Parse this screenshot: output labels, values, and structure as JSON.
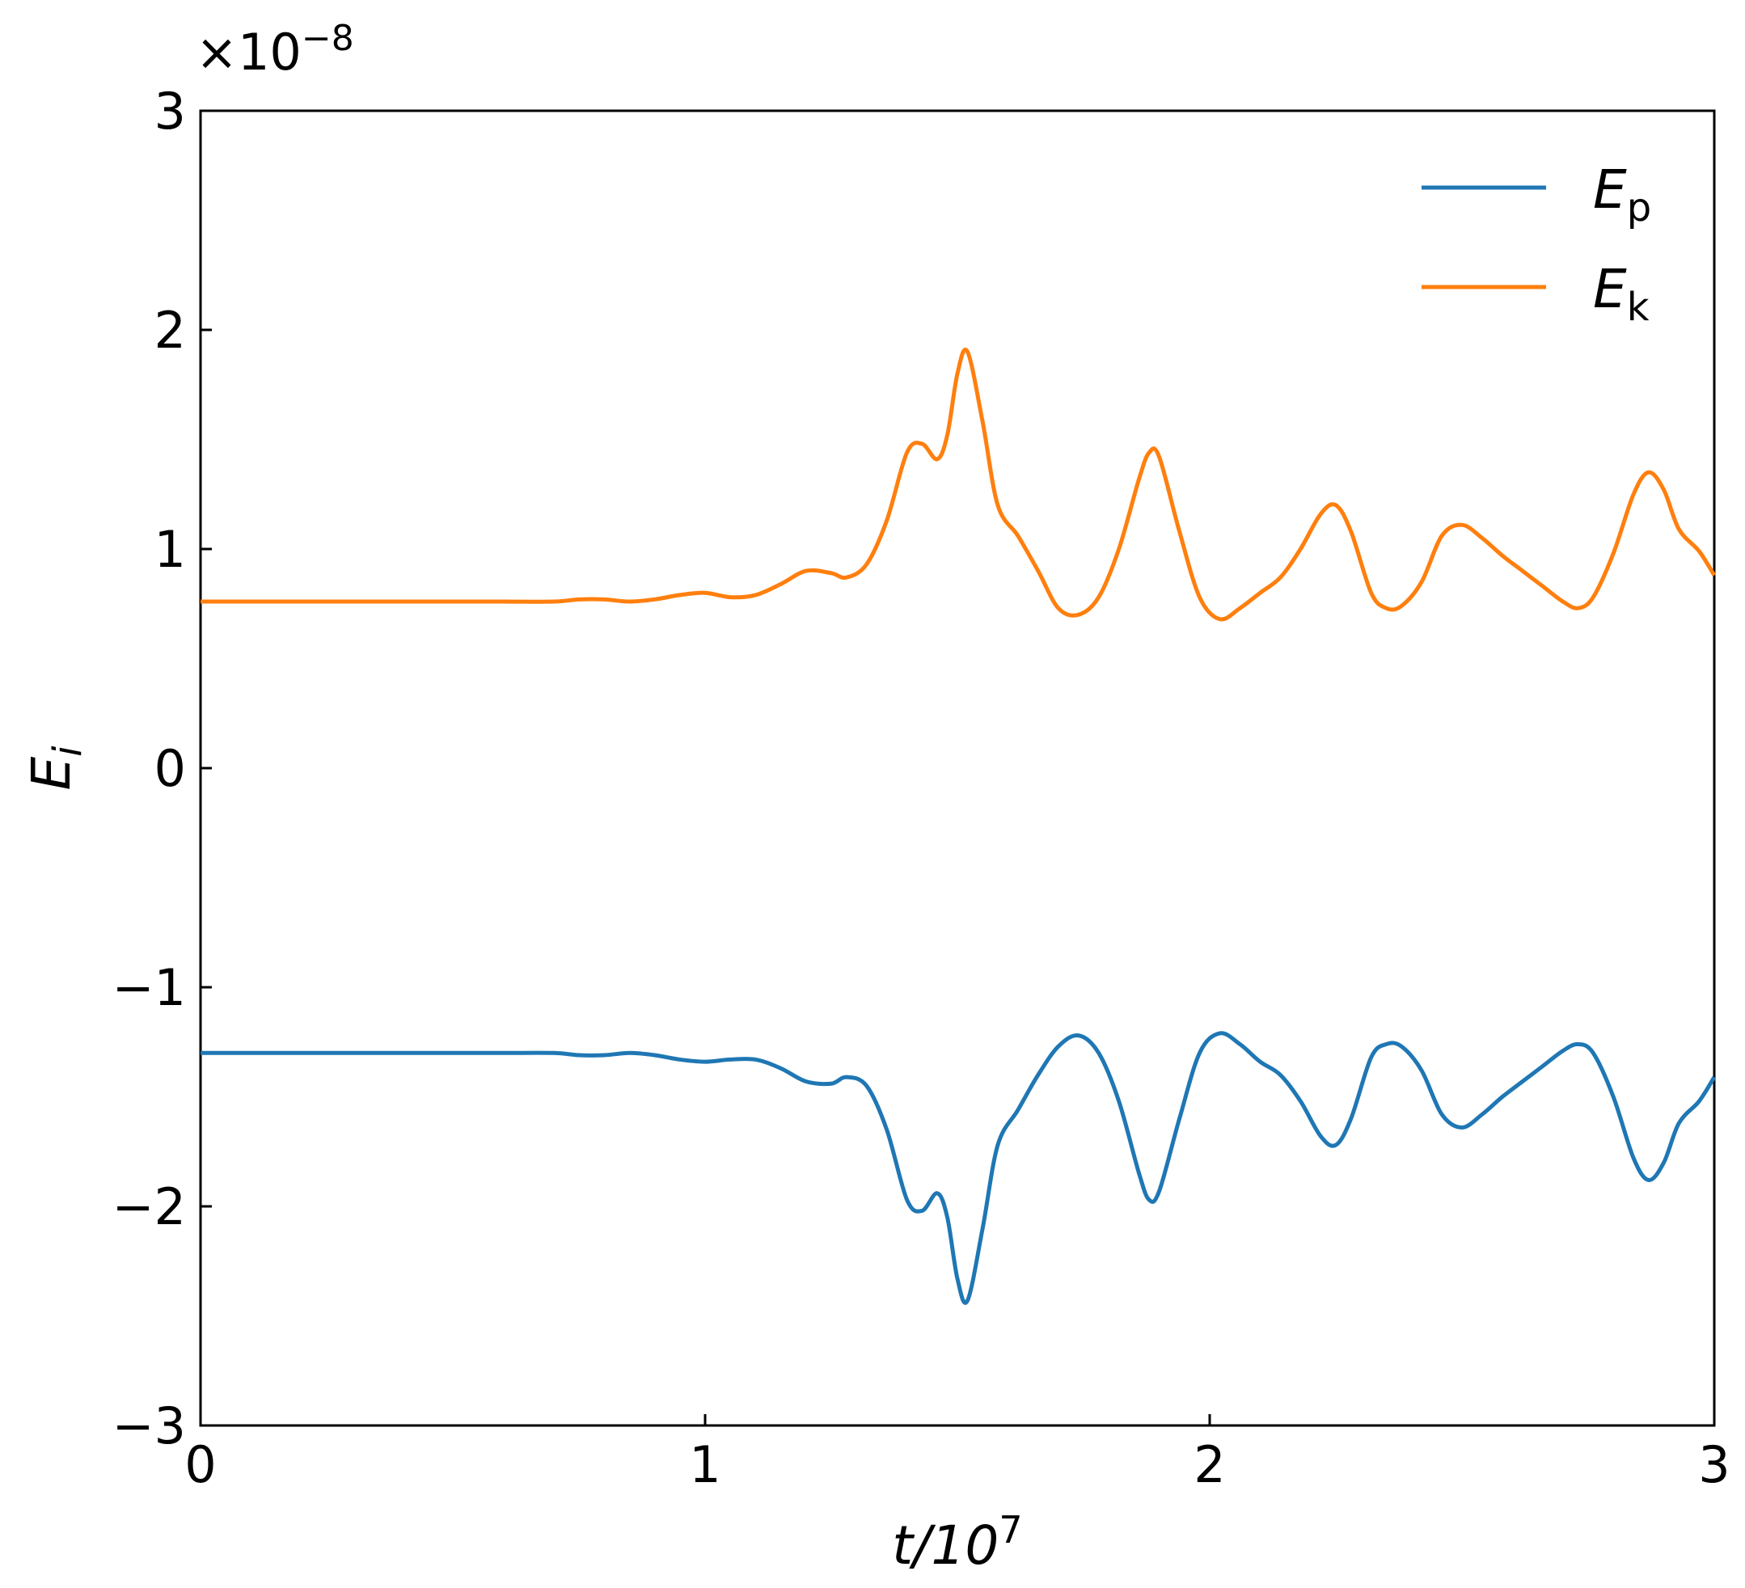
{
  "chart_data": {
    "type": "line",
    "xlabel": {
      "main": "t/10",
      "sup": "7"
    },
    "ylabel": {
      "main": "E",
      "sub": "i"
    },
    "offset_text": {
      "prefix": "×10",
      "sup": "−8"
    },
    "xlim": [
      0,
      3
    ],
    "ylim": [
      -3,
      3
    ],
    "xticks": [
      0,
      1,
      2,
      3
    ],
    "xtick_labels": [
      "0",
      "1",
      "2",
      "3"
    ],
    "yticks": [
      -3,
      -2,
      -1,
      0,
      1,
      2,
      3
    ],
    "ytick_labels": [
      "−3",
      "−2",
      "−1",
      "0",
      "1",
      "2",
      "3"
    ],
    "grid": false,
    "legend_position": "top-right",
    "series": [
      {
        "name": {
          "main": "E",
          "sub": "p"
        },
        "color": "#1f77b4",
        "points": [
          [
            0.0,
            -1.3
          ],
          [
            0.1,
            -1.3
          ],
          [
            0.2,
            -1.3
          ],
          [
            0.3,
            -1.3
          ],
          [
            0.4,
            -1.3
          ],
          [
            0.5,
            -1.3
          ],
          [
            0.6,
            -1.3
          ],
          [
            0.7,
            -1.3
          ],
          [
            0.75,
            -1.31
          ],
          [
            0.8,
            -1.31
          ],
          [
            0.85,
            -1.3
          ],
          [
            0.9,
            -1.31
          ],
          [
            0.95,
            -1.33
          ],
          [
            1.0,
            -1.34
          ],
          [
            1.05,
            -1.33
          ],
          [
            1.1,
            -1.33
          ],
          [
            1.15,
            -1.37
          ],
          [
            1.2,
            -1.43
          ],
          [
            1.25,
            -1.44
          ],
          [
            1.28,
            -1.41
          ],
          [
            1.32,
            -1.45
          ],
          [
            1.36,
            -1.65
          ],
          [
            1.4,
            -1.97
          ],
          [
            1.43,
            -2.02
          ],
          [
            1.46,
            -1.94
          ],
          [
            1.48,
            -2.05
          ],
          [
            1.5,
            -2.33
          ],
          [
            1.52,
            -2.43
          ],
          [
            1.55,
            -2.1
          ],
          [
            1.58,
            -1.72
          ],
          [
            1.62,
            -1.56
          ],
          [
            1.66,
            -1.4
          ],
          [
            1.7,
            -1.27
          ],
          [
            1.74,
            -1.22
          ],
          [
            1.78,
            -1.3
          ],
          [
            1.82,
            -1.52
          ],
          [
            1.86,
            -1.85
          ],
          [
            1.88,
            -1.97
          ],
          [
            1.9,
            -1.93
          ],
          [
            1.94,
            -1.6
          ],
          [
            1.98,
            -1.3
          ],
          [
            2.02,
            -1.21
          ],
          [
            2.06,
            -1.26
          ],
          [
            2.1,
            -1.34
          ],
          [
            2.14,
            -1.4
          ],
          [
            2.18,
            -1.52
          ],
          [
            2.22,
            -1.68
          ],
          [
            2.25,
            -1.72
          ],
          [
            2.28,
            -1.6
          ],
          [
            2.32,
            -1.32
          ],
          [
            2.35,
            -1.26
          ],
          [
            2.38,
            -1.27
          ],
          [
            2.42,
            -1.38
          ],
          [
            2.46,
            -1.58
          ],
          [
            2.5,
            -1.64
          ],
          [
            2.54,
            -1.58
          ],
          [
            2.58,
            -1.5
          ],
          [
            2.62,
            -1.43
          ],
          [
            2.66,
            -1.36
          ],
          [
            2.7,
            -1.29
          ],
          [
            2.73,
            -1.26
          ],
          [
            2.76,
            -1.3
          ],
          [
            2.8,
            -1.5
          ],
          [
            2.84,
            -1.78
          ],
          [
            2.87,
            -1.88
          ],
          [
            2.9,
            -1.8
          ],
          [
            2.93,
            -1.62
          ],
          [
            2.97,
            -1.52
          ],
          [
            3.0,
            -1.41
          ]
        ]
      },
      {
        "name": {
          "main": "E",
          "sub": "k"
        },
        "color": "#ff7f0e",
        "points": [
          [
            0.0,
            0.76
          ],
          [
            0.1,
            0.76
          ],
          [
            0.2,
            0.76
          ],
          [
            0.3,
            0.76
          ],
          [
            0.4,
            0.76
          ],
          [
            0.5,
            0.76
          ],
          [
            0.6,
            0.76
          ],
          [
            0.7,
            0.76
          ],
          [
            0.75,
            0.77
          ],
          [
            0.8,
            0.77
          ],
          [
            0.85,
            0.76
          ],
          [
            0.9,
            0.77
          ],
          [
            0.95,
            0.79
          ],
          [
            1.0,
            0.8
          ],
          [
            1.05,
            0.78
          ],
          [
            1.1,
            0.79
          ],
          [
            1.15,
            0.84
          ],
          [
            1.2,
            0.9
          ],
          [
            1.25,
            0.89
          ],
          [
            1.28,
            0.87
          ],
          [
            1.32,
            0.93
          ],
          [
            1.36,
            1.13
          ],
          [
            1.4,
            1.44
          ],
          [
            1.43,
            1.48
          ],
          [
            1.46,
            1.41
          ],
          [
            1.48,
            1.52
          ],
          [
            1.5,
            1.8
          ],
          [
            1.52,
            1.9
          ],
          [
            1.55,
            1.58
          ],
          [
            1.58,
            1.2
          ],
          [
            1.62,
            1.06
          ],
          [
            1.66,
            0.9
          ],
          [
            1.7,
            0.73
          ],
          [
            1.74,
            0.7
          ],
          [
            1.78,
            0.78
          ],
          [
            1.82,
            1.0
          ],
          [
            1.86,
            1.32
          ],
          [
            1.88,
            1.44
          ],
          [
            1.9,
            1.42
          ],
          [
            1.94,
            1.08
          ],
          [
            1.98,
            0.78
          ],
          [
            2.02,
            0.68
          ],
          [
            2.06,
            0.73
          ],
          [
            2.1,
            0.8
          ],
          [
            2.14,
            0.87
          ],
          [
            2.18,
            1.0
          ],
          [
            2.22,
            1.16
          ],
          [
            2.25,
            1.2
          ],
          [
            2.28,
            1.08
          ],
          [
            2.32,
            0.8
          ],
          [
            2.35,
            0.73
          ],
          [
            2.38,
            0.74
          ],
          [
            2.42,
            0.85
          ],
          [
            2.46,
            1.06
          ],
          [
            2.5,
            1.11
          ],
          [
            2.54,
            1.05
          ],
          [
            2.58,
            0.97
          ],
          [
            2.62,
            0.9
          ],
          [
            2.66,
            0.83
          ],
          [
            2.7,
            0.76
          ],
          [
            2.73,
            0.73
          ],
          [
            2.76,
            0.78
          ],
          [
            2.8,
            0.98
          ],
          [
            2.84,
            1.25
          ],
          [
            2.87,
            1.35
          ],
          [
            2.9,
            1.27
          ],
          [
            2.93,
            1.09
          ],
          [
            2.97,
            0.99
          ],
          [
            3.0,
            0.88
          ]
        ]
      }
    ]
  }
}
